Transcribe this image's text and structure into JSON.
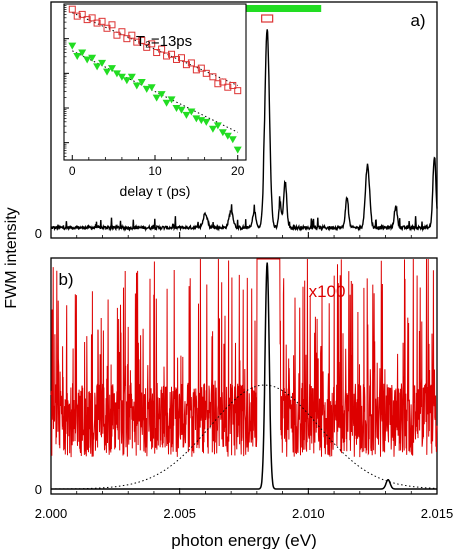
{
  "figure": {
    "ylabel": "FWM intensity",
    "xlabel": "photon energy (eV)"
  },
  "chart_data": [
    {
      "panel": "a)",
      "type": "line",
      "x_range": [
        2.0,
        2.015
      ],
      "y_range": [
        0,
        1
      ],
      "y_tick_labels": [
        "0"
      ],
      "series": [
        {
          "color": "#000000",
          "baseline": 0.02,
          "peaks": [
            {
              "x": 2.0084,
              "height": 0.95,
              "width": 9e-05
            },
            {
              "x": 2.0091,
              "height": 0.22,
              "width": 6e-05
            },
            {
              "x": 2.0089,
              "height": 0.12,
              "width": 5e-05
            },
            {
              "x": 2.0115,
              "height": 0.14,
              "width": 6e-05
            },
            {
              "x": 2.0123,
              "height": 0.3,
              "width": 8e-05
            },
            {
              "x": 2.0134,
              "height": 0.1,
              "width": 6e-05
            },
            {
              "x": 2.0149,
              "height": 0.34,
              "width": 6e-05
            },
            {
              "x": 2.0079,
              "height": 0.08,
              "width": 6e-05
            },
            {
              "x": 2.007,
              "height": 0.08,
              "width": 8e-05
            },
            {
              "x": 2.006,
              "height": 0.07,
              "width": 8e-05
            }
          ]
        }
      ],
      "spectral_bar": {
        "color": "#22dd22",
        "x_start": 2.0067,
        "x_end": 2.0105
      },
      "marker": {
        "type": "open-square",
        "color": "#dd3333",
        "x": 2.0084
      }
    },
    {
      "panel": "b)",
      "type": "line",
      "x_range": [
        2.0,
        2.015
      ],
      "x_ticks": [
        2.0,
        2.005,
        2.01,
        2.015
      ],
      "x_tick_labels": [
        "2.000",
        "2.005",
        "2.010",
        "2.015"
      ],
      "y_range": [
        0,
        1
      ],
      "y_tick_labels": [
        "0"
      ],
      "series": [
        {
          "name": "x100",
          "color": "#dd0000",
          "description": "noise amplified x100"
        },
        {
          "color": "#000000",
          "peaks": [
            {
              "x": 2.0084,
              "height": 0.98,
              "width": 8e-05
            },
            {
              "x": 2.0131,
              "height": 0.04,
              "width": 8e-05
            }
          ]
        },
        {
          "color": "#000000",
          "style": "dotted",
          "type": "gaussian-envelope",
          "center": 2.0083,
          "sigma": 0.0021,
          "height": 0.45
        }
      ]
    },
    {
      "panel": "inset",
      "type": "scatter",
      "label": "T₂=13ps",
      "xlabel": "delay τ (ps)",
      "x_ticks": [
        0,
        10,
        20
      ],
      "x_range": [
        -1,
        21
      ],
      "y_scale": "log",
      "y_range_decades": [
        -4.5,
        0
      ],
      "series": [
        {
          "marker": "open-square",
          "color": "#dd3333",
          "points": [
            [
              0,
              -0.15
            ],
            [
              0.6,
              -0.35
            ],
            [
              1.2,
              -0.3
            ],
            [
              1.8,
              -0.45
            ],
            [
              2.4,
              -0.4
            ],
            [
              3,
              -0.55
            ],
            [
              3.6,
              -0.5
            ],
            [
              4.2,
              -0.7
            ],
            [
              4.8,
              -0.6
            ],
            [
              5.4,
              -0.9
            ],
            [
              6,
              -0.8
            ],
            [
              6.6,
              -1.0
            ],
            [
              7.2,
              -0.9
            ],
            [
              7.8,
              -1.1
            ],
            [
              8.4,
              -1.05
            ],
            [
              9,
              -1.25
            ],
            [
              9.6,
              -1.15
            ],
            [
              10.2,
              -1.4
            ],
            [
              10.8,
              -1.3
            ],
            [
              11.4,
              -1.5
            ],
            [
              12,
              -1.45
            ],
            [
              12.6,
              -1.6
            ],
            [
              13.2,
              -1.55
            ],
            [
              13.8,
              -1.75
            ],
            [
              14.4,
              -1.7
            ],
            [
              15,
              -1.9
            ],
            [
              15.6,
              -1.85
            ],
            [
              16.2,
              -2.0
            ],
            [
              17,
              -2.1
            ],
            [
              17.6,
              -2.3
            ],
            [
              18.2,
              -2.25
            ],
            [
              18.8,
              -2.4
            ],
            [
              19.4,
              -2.35
            ],
            [
              20,
              -2.5
            ]
          ]
        },
        {
          "marker": "filled-triangle-down",
          "color": "#22dd22",
          "points": [
            [
              0,
              -1.2
            ],
            [
              0.6,
              -1.5
            ],
            [
              1.2,
              -1.4
            ],
            [
              1.8,
              -1.6
            ],
            [
              2.4,
              -1.55
            ],
            [
              3,
              -1.8
            ],
            [
              3.6,
              -1.7
            ],
            [
              4.2,
              -1.95
            ],
            [
              4.8,
              -1.85
            ],
            [
              5.4,
              -2.0
            ],
            [
              6,
              -2.1
            ],
            [
              6.6,
              -2.2
            ],
            [
              7.2,
              -2.1
            ],
            [
              7.8,
              -2.35
            ],
            [
              8.4,
              -2.25
            ],
            [
              9,
              -2.45
            ],
            [
              9.6,
              -2.4
            ],
            [
              10.2,
              -2.7
            ],
            [
              10.8,
              -2.6
            ],
            [
              11.4,
              -2.85
            ],
            [
              12,
              -2.75
            ],
            [
              12.6,
              -3.0
            ],
            [
              13.2,
              -3.05
            ],
            [
              13.8,
              -3.2
            ],
            [
              14.4,
              -3.1
            ],
            [
              15,
              -3.3
            ],
            [
              15.6,
              -3.35
            ],
            [
              16.2,
              -3.4
            ],
            [
              17,
              -3.6
            ],
            [
              17.6,
              -3.5
            ],
            [
              18.2,
              -3.7
            ],
            [
              18.8,
              -3.8
            ],
            [
              19.4,
              -3.9
            ],
            [
              20,
              -4.2
            ]
          ]
        }
      ],
      "fits": [
        {
          "style": "dotted",
          "x": [
            0,
            20
          ],
          "y": [
            -0.25,
            -2.35
          ]
        },
        {
          "style": "dotted",
          "x": [
            0,
            20
          ],
          "y": [
            -1.35,
            -3.7
          ]
        }
      ]
    }
  ]
}
